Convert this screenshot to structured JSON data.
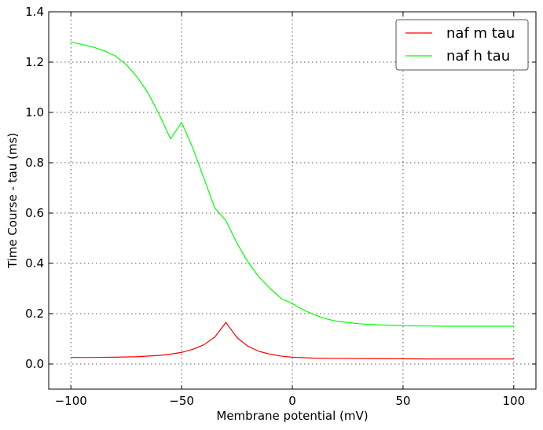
{
  "chart_data": {
    "type": "line",
    "title": "",
    "xlabel": "Membrane potential (mV)",
    "ylabel": "Time Course - tau (ms)",
    "xlim": [
      -110,
      110
    ],
    "ylim": [
      -0.1,
      1.4
    ],
    "xticks": [
      -100,
      -50,
      0,
      50,
      100
    ],
    "xtick_labels": [
      "−100",
      "−50",
      "0",
      "50",
      "100"
    ],
    "yticks": [
      0.0,
      0.2,
      0.4,
      0.6,
      0.8,
      1.0,
      1.2,
      1.4
    ],
    "ytick_labels": [
      "0.0",
      "0.2",
      "0.4",
      "0.6",
      "0.8",
      "1.0",
      "1.2",
      "1.4"
    ],
    "grid": true,
    "legend_position": "top-right",
    "series": [
      {
        "name": "naf m tau",
        "color": "#ff0000",
        "x": [
          -100,
          -90,
          -80,
          -70,
          -60,
          -55,
          -50,
          -45,
          -40,
          -35,
          -30,
          -25,
          -20,
          -15,
          -10,
          -5,
          0,
          10,
          20,
          40,
          60,
          80,
          100
        ],
        "y": [
          0.026,
          0.026,
          0.027,
          0.029,
          0.034,
          0.039,
          0.046,
          0.058,
          0.076,
          0.107,
          0.165,
          0.105,
          0.07,
          0.05,
          0.039,
          0.031,
          0.027,
          0.023,
          0.022,
          0.021,
          0.02,
          0.02,
          0.02
        ]
      },
      {
        "name": "naf h tau",
        "color": "#00ff00",
        "x": [
          -100,
          -95,
          -90,
          -85,
          -80,
          -75,
          -70,
          -65,
          -60,
          -55,
          -50,
          -45,
          -40,
          -35,
          -30,
          -25,
          -20,
          -15,
          -10,
          -5,
          0,
          5,
          10,
          15,
          20,
          30,
          40,
          50,
          60,
          70,
          80,
          90,
          100
        ],
        "y": [
          1.28,
          1.27,
          1.26,
          1.245,
          1.225,
          1.19,
          1.14,
          1.075,
          0.99,
          0.895,
          0.96,
          0.86,
          0.74,
          0.62,
          0.57,
          0.48,
          0.405,
          0.345,
          0.3,
          0.26,
          0.24,
          0.215,
          0.195,
          0.18,
          0.17,
          0.16,
          0.155,
          0.152,
          0.151,
          0.15,
          0.15,
          0.15,
          0.15
        ]
      }
    ]
  }
}
